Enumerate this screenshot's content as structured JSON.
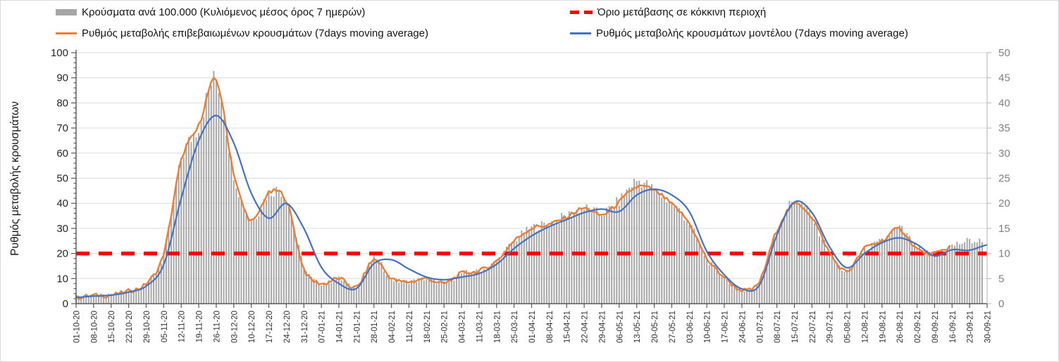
{
  "legend": {
    "items": [
      {
        "id": "cases-per-100k",
        "label": "Κρούσματα ανά 100.000 (Κυλιόμενος μέσος όρος 7 ημερών)",
        "swatch": "bar",
        "color": "#A6A6A6",
        "column": "left",
        "row": 1
      },
      {
        "id": "confirmed-rate",
        "label": "Ρυθμός μεταβολής επιβεβαιωμένων κρουσμάτων (7days moving average)",
        "swatch": "line",
        "color": "#ED7D31",
        "column": "left",
        "row": 2
      },
      {
        "id": "red-zone-threshold",
        "label": "Όριο μετάβασης σε κόκκινη περιοχή",
        "swatch": "dash",
        "color": "#FF0000",
        "column": "right",
        "row": 1
      },
      {
        "id": "model-rate",
        "label": "Ρυθμός μεταβολής κρουσμάτων μοντέλου (7days moving average)",
        "swatch": "line",
        "color": "#4472C4",
        "column": "right",
        "row": 2
      }
    ]
  },
  "chart_data": {
    "type": "combo bar + line, dual y-axis",
    "title": "",
    "left_axis": {
      "title": "Ρυθμός μεταβολής κρουσμάτων",
      "min": 0,
      "max": 100,
      "step": 10
    },
    "right_axis": {
      "title": "",
      "min": 0,
      "max": 50,
      "step": 5
    },
    "grid": "horizontal gridlines every 10 left-axis units",
    "legend_position": "top, two columns",
    "x_tick_labels": [
      "01-10-20",
      "08-10-20",
      "15-10-20",
      "22-10-20",
      "29-10-20",
      "05-11-20",
      "12-11-20",
      "19-11-20",
      "26-11-20",
      "03-12-20",
      "10-12-20",
      "17-12-20",
      "24-12-20",
      "31-12-20",
      "07-01-21",
      "14-01-21",
      "21-01-21",
      "28-01-21",
      "04-02-21",
      "11-02-21",
      "18-02-21",
      "25-02-21",
      "04-03-21",
      "11-03-21",
      "18-03-21",
      "25-03-21",
      "01-04-21",
      "08-04-21",
      "15-04-21",
      "22-04-21",
      "29-04-21",
      "06-05-21",
      "13-05-21",
      "20-05-21",
      "27-05-21",
      "03-06-21",
      "10-06-21",
      "17-06-21",
      "24-06-21",
      "01-07-21",
      "08-07-21",
      "15-07-21",
      "22-07-21",
      "29-07-21",
      "05-08-21",
      "12-08-21",
      "19-08-21",
      "26-08-21",
      "02-09-21",
      "09-09-21",
      "16-09-21",
      "23-09-21",
      "30-09-21"
    ],
    "sampling_note": "series values estimated from the plot at each weekly x tick; bars are daily, lines are 7-day moving averages",
    "threshold": {
      "name": "Όριο μετάβασης σε κόκκινη περιοχή",
      "type": "horizontal-dashed-line",
      "axis": "left",
      "value": 20,
      "color": "#FF0000"
    },
    "series": [
      {
        "name": "Κρούσματα ανά 100.000 (Κυλιόμενος μέσος όρος 7 ημερών)",
        "type": "bar",
        "axis": "right",
        "color": "#A6A6A6",
        "weekly_values": [
          1.3,
          1.6,
          1.7,
          2.5,
          4,
          10,
          28.5,
          35.5,
          44.5,
          26,
          17,
          22,
          21,
          7.5,
          4,
          5,
          3.2,
          8.8,
          5,
          4.4,
          5,
          4,
          6,
          6.5,
          8.5,
          12.5,
          15,
          16,
          17.5,
          19,
          18,
          20.5,
          24.5,
          22.5,
          20,
          16,
          9,
          5.3,
          2.7,
          4.4,
          14.7,
          20.5,
          17.2,
          10.2,
          6.5,
          10.4,
          12.5,
          15,
          11,
          10,
          11.5,
          12.5,
          12.2
        ],
        "last_day_plotted": "27-09-21"
      },
      {
        "name": "Ρυθμός μεταβολής επιβεβαιωμένων κρουσμάτων (7days moving average)",
        "type": "line",
        "axis": "left",
        "color": "#ED7D31",
        "weekly_values": [
          2.5,
          3.2,
          3.4,
          5,
          8,
          20,
          57,
          71,
          89,
          52,
          33,
          44,
          41,
          14,
          8,
          10,
          6.5,
          17.5,
          10,
          8.7,
          10,
          8,
          12,
          13,
          17,
          25,
          30,
          31.5,
          34.5,
          38,
          35.3,
          40.5,
          46.5,
          45,
          39.5,
          32,
          18,
          10.6,
          5.4,
          8.7,
          29.3,
          39.5,
          34.4,
          20.4,
          12.9,
          22,
          25,
          29.7,
          21.8,
          19.8,
          23,
          null,
          null
        ],
        "peak": {
          "date": "26-11-20",
          "value": 89
        },
        "last_day_plotted": "16-09-21"
      },
      {
        "name": "Ρυθμός μεταβολής κρουσμάτων μοντέλου (7days moving average)",
        "type": "line",
        "axis": "left",
        "color": "#4472C4",
        "weekly_values": [
          2.5,
          3,
          3.4,
          4.6,
          7,
          15.5,
          42,
          65,
          75,
          64,
          44,
          34,
          40,
          30,
          14.5,
          8,
          6,
          16,
          17.5,
          13.8,
          10.6,
          9.5,
          10.6,
          12,
          15.7,
          22,
          27,
          30.7,
          33.5,
          36.3,
          37.7,
          36.7,
          43.3,
          45.6,
          43.3,
          36.7,
          20.8,
          11.5,
          5.9,
          7.3,
          27.4,
          40.5,
          36.3,
          22.7,
          14.3,
          20,
          24.3,
          26.2,
          23.6,
          19,
          21.5,
          21.3,
          23.4
        ],
        "peak": {
          "date": "27-11-20",
          "value": 75
        }
      }
    ]
  },
  "colors": {
    "bars": "#A6A6A6",
    "confirmed_line": "#ED7D31",
    "model_line": "#4472C4",
    "threshold_line": "#FF0000",
    "gridline": "#DCDCDC",
    "axis_line": "#595959",
    "right_axis_line": "#BFBFBF",
    "left_tick_text": "#262626",
    "right_tick_text": "#7F7F7F",
    "x_tick_text": "#333333"
  }
}
